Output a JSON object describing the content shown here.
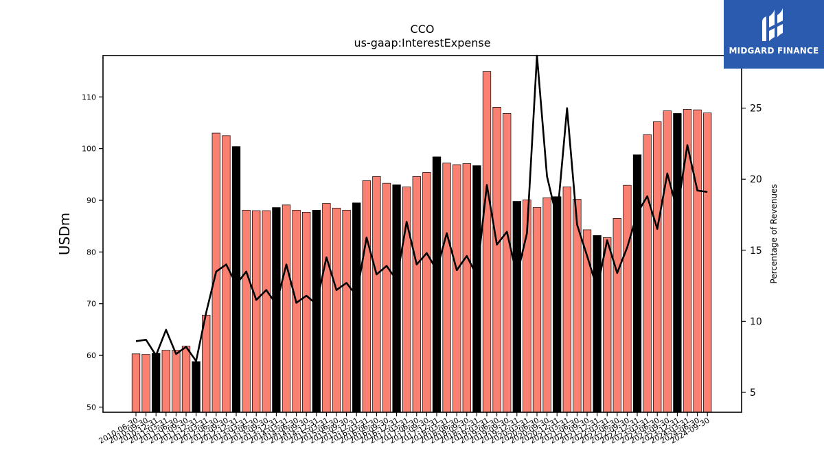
{
  "chart_data": {
    "type": "bar",
    "title": "CCO",
    "subtitle": "us-gaap:InterestExpense",
    "ylabel": "USDm",
    "y2label": "Percentage of Revenues",
    "ylim": [
      49,
      118
    ],
    "y2lim": [
      3.6,
      28.7
    ],
    "yticks": [
      50,
      60,
      70,
      80,
      90,
      100,
      110
    ],
    "y2ticks": [
      5,
      10,
      15,
      20,
      25
    ],
    "categories": [
      "2010-06-30",
      "2010-09-30",
      "2010-12-31",
      "2011-03-31",
      "2011-06-30",
      "2011-09-30",
      "2011-12-31",
      "2012-03-31",
      "2012-06-30",
      "2012-09-30",
      "2012-12-31",
      "2013-03-31",
      "2013-06-30",
      "2013-09-30",
      "2013-12-31",
      "2014-03-31",
      "2014-06-30",
      "2014-09-30",
      "2014-12-31",
      "2015-03-31",
      "2015-06-30",
      "2015-09-30",
      "2015-12-31",
      "2016-03-31",
      "2016-06-30",
      "2016-09-30",
      "2016-12-31",
      "2017-03-31",
      "2017-06-30",
      "2017-09-30",
      "2017-12-31",
      "2018-03-31",
      "2018-06-30",
      "2018-09-30",
      "2018-12-31",
      "2019-03-31",
      "2019-06-30",
      "2019-09-30",
      "2019-12-31",
      "2020-03-31",
      "2020-06-30",
      "2020-09-30",
      "2020-12-31",
      "2021-03-31",
      "2021-06-30",
      "2021-09-30",
      "2021-12-31",
      "2022-03-31",
      "2022-06-30",
      "2022-09-30",
      "2022-12-31",
      "2023-03-31",
      "2023-06-30",
      "2023-09-30",
      "2023-12-31",
      "2024-03-31",
      "2024-06-30",
      "2024-09-30"
    ],
    "series": [
      {
        "name": "USDm",
        "type": "bar",
        "values": [
          60.3,
          60.2,
          60.4,
          61.0,
          61.0,
          61.8,
          58.8,
          67.8,
          103.0,
          102.5,
          100.4,
          88.1,
          88.0,
          88.0,
          88.6,
          89.1,
          88.1,
          87.7,
          88.1,
          89.4,
          88.5,
          88.1,
          89.5,
          93.8,
          94.6,
          93.3,
          93.0,
          92.6,
          94.6,
          95.4,
          98.4,
          97.2,
          96.9,
          97.1,
          96.7,
          114.9,
          108.0,
          106.8,
          89.8,
          90.1,
          88.6,
          90.5,
          90.7,
          92.6,
          90.2,
          84.3,
          83.2,
          82.8,
          86.5,
          92.9,
          98.8,
          102.7,
          105.2,
          107.3,
          106.8,
          107.6,
          107.5,
          106.9
        ],
        "highlight": [
          false,
          false,
          true,
          false,
          false,
          false,
          true,
          false,
          false,
          false,
          true,
          false,
          false,
          false,
          true,
          false,
          false,
          false,
          true,
          false,
          false,
          false,
          true,
          false,
          false,
          false,
          true,
          false,
          false,
          false,
          true,
          false,
          false,
          false,
          true,
          false,
          false,
          false,
          true,
          false,
          false,
          false,
          true,
          false,
          false,
          false,
          true,
          false,
          false,
          false,
          true,
          false,
          false,
          false,
          true,
          false,
          false,
          false
        ],
        "color": "#FA8072",
        "highlight_color": "#000000"
      },
      {
        "name": "Percentage of Revenues",
        "type": "line",
        "axis": "right",
        "values": [
          8.6,
          8.7,
          7.6,
          9.4,
          7.7,
          8.2,
          7.2,
          10.6,
          13.5,
          14.0,
          12.6,
          13.5,
          11.5,
          12.2,
          11.2,
          14.0,
          11.3,
          11.8,
          11.2,
          14.5,
          12.2,
          12.7,
          11.8,
          15.9,
          13.3,
          13.9,
          12.9,
          17.0,
          14.0,
          14.8,
          13.6,
          16.2,
          13.6,
          14.6,
          13.2,
          19.6,
          15.4,
          16.3,
          13.2,
          16.2,
          28.7,
          20.2,
          17.2,
          25.0,
          16.8,
          14.6,
          12.3,
          15.7,
          13.4,
          15.2,
          17.6,
          18.8,
          16.5,
          20.4,
          17.8,
          22.4,
          19.2,
          19.1
        ],
        "color": "#000000"
      }
    ],
    "grid": false
  },
  "logo": {
    "text": "MIDGARD FINANCE",
    "icon": "midgard-logo-icon",
    "color": "#2B5BAE"
  }
}
